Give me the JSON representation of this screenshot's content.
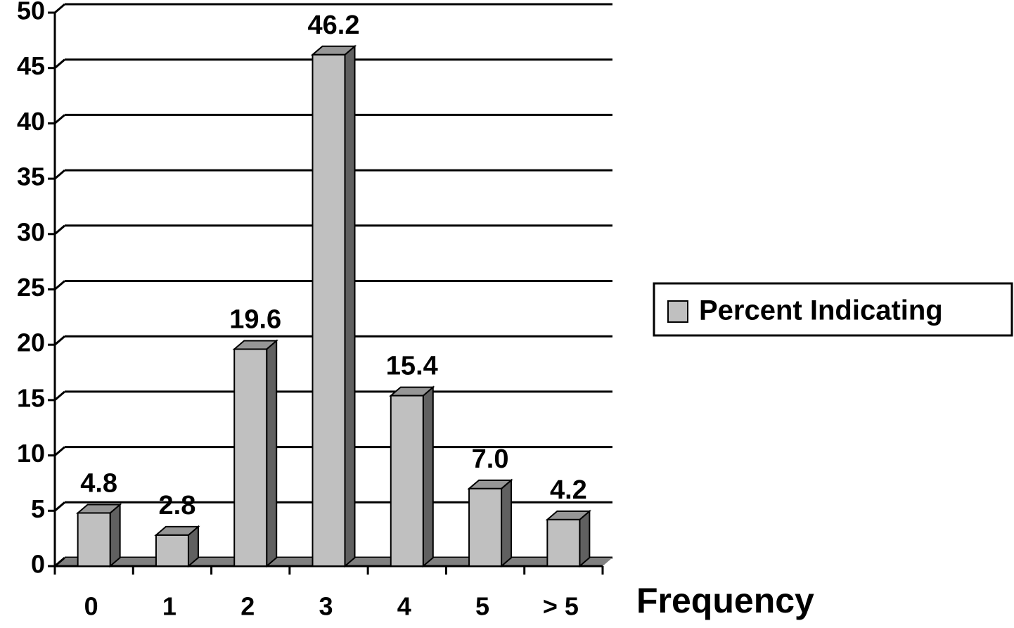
{
  "chart_data": {
    "type": "bar",
    "categories": [
      "0",
      "1",
      "2",
      "3",
      "4",
      "5",
      "> 5"
    ],
    "series": [
      {
        "name": "Percent Indicating",
        "color": "#c0c0c0",
        "values": [
          4.8,
          2.8,
          19.6,
          46.2,
          15.4,
          7.0,
          4.2
        ],
        "value_labels": [
          "4.8",
          "2.8",
          "19.6",
          "46.2",
          "15.4",
          "7.0",
          "4.2"
        ]
      }
    ],
    "x_label": "Frequency",
    "ylim": [
      0,
      50
    ],
    "yticks": [
      0,
      5,
      10,
      15,
      20,
      25,
      30,
      35,
      40,
      45,
      50
    ],
    "grid": true,
    "legend": "right"
  }
}
